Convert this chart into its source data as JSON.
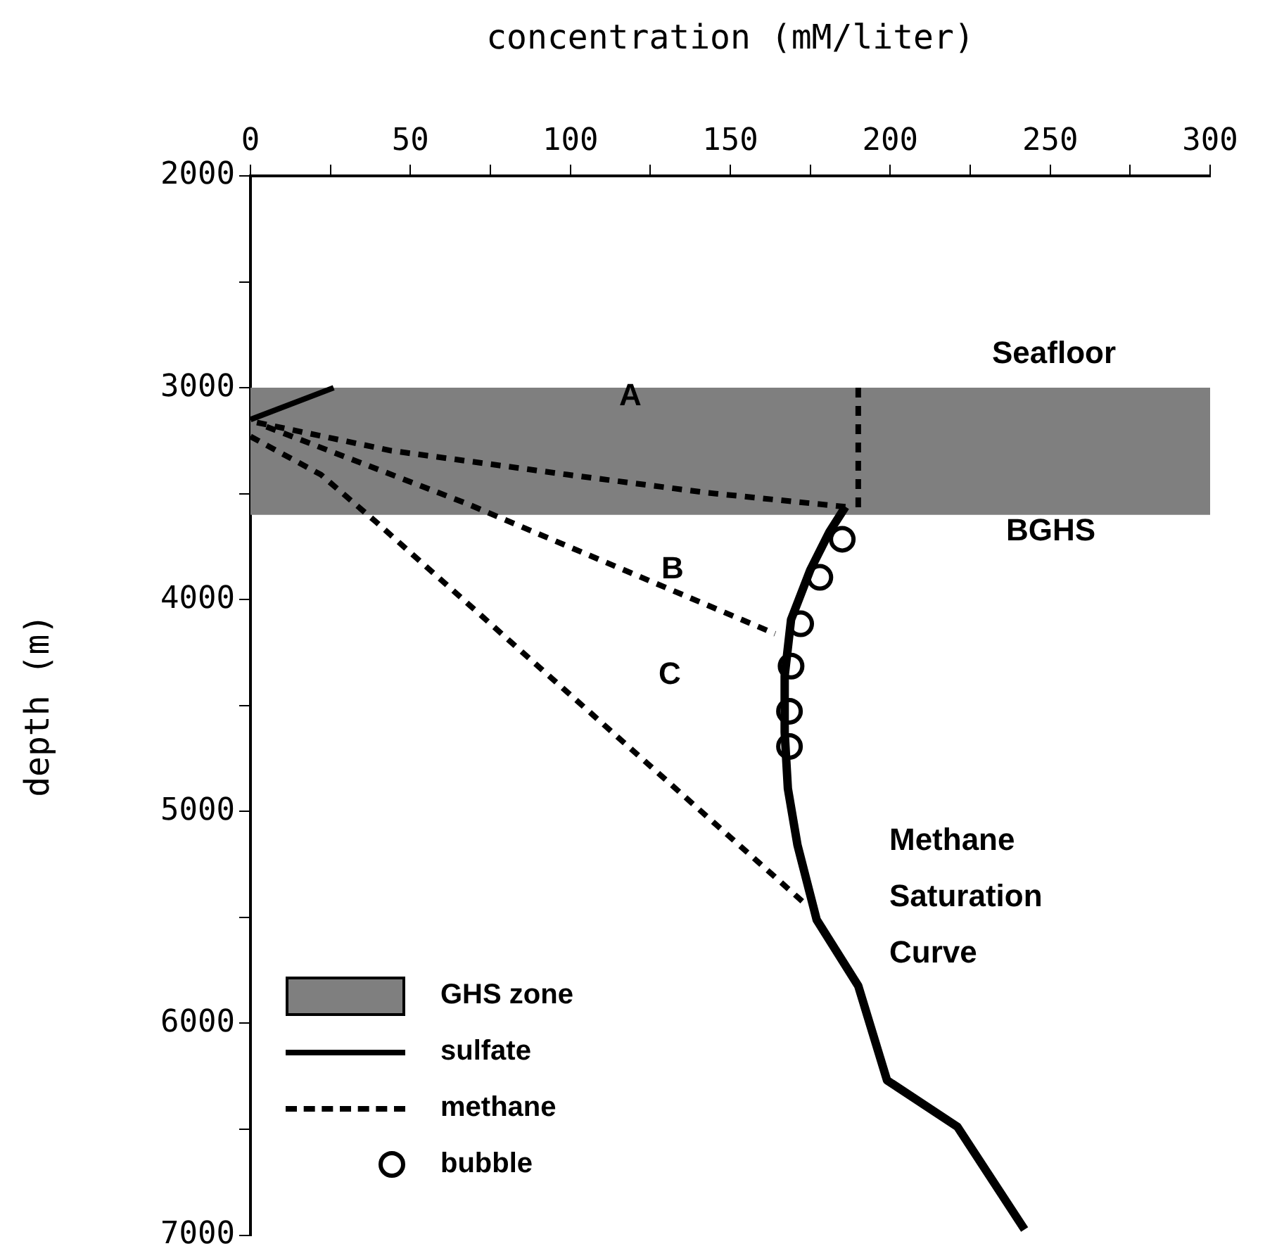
{
  "chart_data": {
    "type": "line",
    "xlabel": "concentration (mM/liter)",
    "ylabel": "depth (m)",
    "xlim": [
      0,
      300
    ],
    "xticks": [
      0,
      {
        "value": 25,
        "label": null
      },
      50,
      {
        "value": 75,
        "label": null
      },
      100,
      {
        "value": 125,
        "label": null
      },
      150,
      {
        "value": 175,
        "label": null
      },
      200,
      {
        "value": 225,
        "label": null
      },
      250,
      {
        "value": 275,
        "label": null
      },
      300
    ],
    "ylim": [
      7000,
      2000
    ],
    "yticks": [
      2000,
      {
        "value": 2500,
        "label": null
      },
      3000,
      {
        "value": 3500,
        "label": null
      },
      4000,
      {
        "value": 4500,
        "label": null
      },
      5000,
      {
        "value": 5500,
        "label": null
      },
      6000,
      {
        "value": 6500,
        "label": null
      },
      7000
    ],
    "grid": false,
    "legend": "bottom left",
    "bands": [
      {
        "axis": "y",
        "from": 3000,
        "to": 3600,
        "label": "GHS zone",
        "color": "#7f7f7f"
      }
    ],
    "series": [
      {
        "name": "sulfate",
        "color": "#000000",
        "line_style": "solid",
        "marker": "none",
        "x": [
          0,
          26
        ],
        "values": [
          3150,
          3000
        ]
      },
      {
        "name": "methane",
        "color": "#000000",
        "line_style": "dashed",
        "marker": "none",
        "x": [
          2,
          44,
          99,
          143,
          186
        ],
        "values": [
          3164,
          3297,
          3410,
          3496,
          3562
        ]
      },
      {
        "color": "#000000",
        "line_style": "dashed",
        "marker": "none",
        "x": [
          5,
          36,
          67,
          164
        ],
        "values": [
          3184,
          3363,
          3543,
          4161
        ]
      },
      {
        "color": "#000000",
        "line_style": "dashed",
        "marker": "none",
        "x": [
          0,
          22,
          39,
          174
        ],
        "values": [
          3230,
          3410,
          3630,
          5444
        ]
      },
      {
        "color": "#000000",
        "line_style": "dashed",
        "marker": "none",
        "x": [
          190,
          190
        ],
        "values": [
          3000,
          3600
        ]
      },
      {
        "color": "#000000",
        "line_style": "solid",
        "marker": "none",
        "x": [
          186,
          181,
          175,
          169,
          167,
          167,
          168,
          171,
          177,
          190,
          199,
          221,
          242
        ],
        "values": [
          3562,
          3680,
          3860,
          4094,
          4360,
          4626,
          4892,
          5158,
          5511,
          5823,
          6269,
          6488,
          6973
        ]
      },
      {
        "name": "bubble",
        "type": "scatter",
        "color": "#000000",
        "marker": "circle",
        "x": [
          185,
          178,
          172,
          169,
          168.5,
          168.5
        ],
        "values": [
          3715,
          3895,
          4114,
          4314,
          4527,
          4693
        ]
      }
    ],
    "annotations": [
      "A",
      "B",
      "C",
      "Seafloor",
      "BGHS",
      "Methane Saturation Curve"
    ]
  }
}
